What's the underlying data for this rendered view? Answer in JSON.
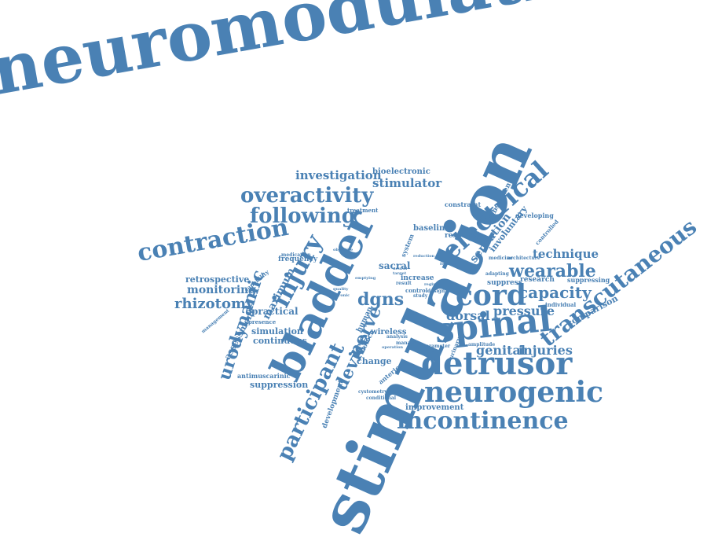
{
  "word_color": "#4a81b4",
  "background_color": "#ffffff",
  "words": [
    {
      "text": "neuromodulation"
    },
    {
      "text": "stimulation"
    },
    {
      "text": "bladder"
    },
    {
      "text": "spinal"
    },
    {
      "text": "detrusor"
    },
    {
      "text": "neurogenic"
    },
    {
      "text": "incontinence"
    },
    {
      "text": "cord"
    },
    {
      "text": "electrical"
    },
    {
      "text": "transcutaneous"
    },
    {
      "text": "contraction"
    },
    {
      "text": "overactivity"
    },
    {
      "text": "following"
    },
    {
      "text": "injury"
    },
    {
      "text": "urodynamic"
    },
    {
      "text": "participant"
    },
    {
      "text": "device"
    },
    {
      "text": "nerve"
    },
    {
      "text": "wearable"
    },
    {
      "text": "capacity"
    },
    {
      "text": "technique"
    },
    {
      "text": "investigation"
    },
    {
      "text": "stimulator"
    },
    {
      "text": "bioelectronic"
    },
    {
      "text": "dgns"
    },
    {
      "text": "pressure"
    },
    {
      "text": "dorsal"
    },
    {
      "text": "genital"
    },
    {
      "text": "injuries"
    },
    {
      "text": "rhizotomy"
    },
    {
      "text": "monitoring"
    },
    {
      "text": "retrospective"
    },
    {
      "text": "maximum"
    },
    {
      "text": "sensation"
    },
    {
      "text": "involuntary"
    },
    {
      "text": "comparison"
    },
    {
      "text": "practical"
    },
    {
      "text": "simulation"
    },
    {
      "text": "continuous"
    },
    {
      "text": "suppression"
    },
    {
      "text": "assessment"
    },
    {
      "text": "antimuscarinic"
    },
    {
      "text": "improvement"
    },
    {
      "text": "development"
    },
    {
      "text": "change"
    },
    {
      "text": "wireless"
    },
    {
      "text": "human"
    },
    {
      "text": "biotech"
    },
    {
      "text": "sacral"
    },
    {
      "text": "increase"
    },
    {
      "text": "baseline"
    },
    {
      "text": "response"
    },
    {
      "text": "constraint"
    },
    {
      "text": "subsequent"
    },
    {
      "text": "developing"
    },
    {
      "text": "controlled"
    },
    {
      "text": "frequency"
    },
    {
      "text": "capability"
    },
    {
      "text": "presence"
    },
    {
      "text": "management"
    },
    {
      "text": "treatment"
    },
    {
      "text": "medication"
    },
    {
      "text": "objective"
    },
    {
      "text": "system"
    },
    {
      "text": "suppress"
    },
    {
      "text": "research"
    },
    {
      "text": "suppressing"
    },
    {
      "text": "adapting"
    },
    {
      "text": "individual"
    },
    {
      "text": "amplitude"
    },
    {
      "text": "medicine"
    },
    {
      "text": "architecture"
    },
    {
      "text": "anterior"
    },
    {
      "text": "cystometry"
    },
    {
      "text": "conditional"
    },
    {
      "text": "manage"
    },
    {
      "text": "analysis"
    },
    {
      "text": "control"
    },
    {
      "text": "study"
    },
    {
      "text": "result"
    },
    {
      "text": "design"
    },
    {
      "text": "regime"
    },
    {
      "text": "parameter"
    },
    {
      "text": "urinary"
    },
    {
      "text": "operation"
    },
    {
      "text": "target"
    },
    {
      "text": "neural"
    },
    {
      "text": "reduction"
    },
    {
      "text": "feasible"
    },
    {
      "text": "emptying"
    },
    {
      "text": "quality"
    },
    {
      "text": "chronic"
    }
  ]
}
